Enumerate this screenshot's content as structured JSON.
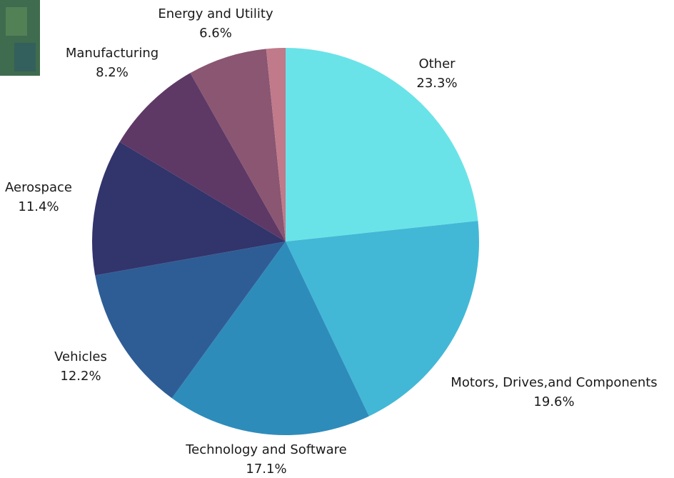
{
  "chart_data": {
    "type": "pie",
    "categories": [
      "Other",
      "Motors, Drives,and Components",
      "Technology and Software",
      "Vehicles",
      "Aerospace",
      "Manufacturing",
      "Energy and Utility",
      null
    ],
    "values": [
      23.3,
      19.6,
      17.1,
      12.2,
      11.4,
      8.2,
      6.6,
      1.6
    ],
    "value_labels": [
      "23.3%",
      "19.6%",
      "17.1%",
      "12.2%",
      "11.4%",
      "8.2%",
      "6.6%",
      null
    ],
    "colors": [
      "#6ae3e8",
      "#42b8d6",
      "#2e8cbb",
      "#2e5d95",
      "#32346c",
      "#5e3966",
      "#8a5672",
      "#c07a8a"
    ]
  }
}
